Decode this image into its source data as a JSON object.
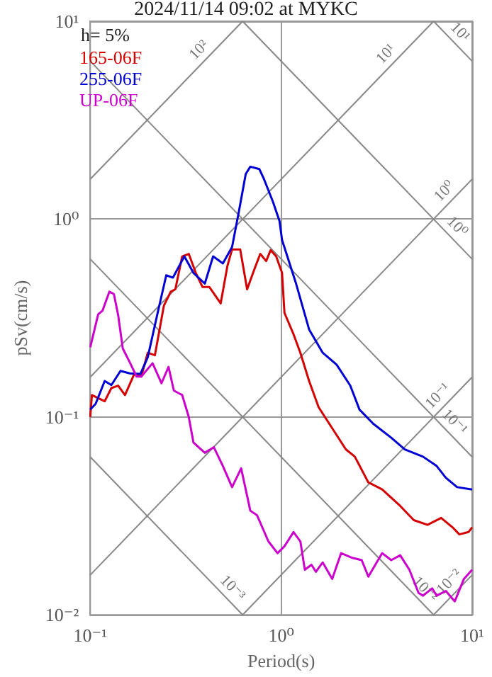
{
  "chart_data": {
    "type": "line",
    "title": "2024/11/14 09:02 at MYKC",
    "xlabel": "Period(s)",
    "ylabel": "pSv(cm/s)",
    "log": "xy",
    "grid": true,
    "legend": "top left",
    "marker": "none",
    "line_style": "solid",
    "xlim": [
      0.1,
      10
    ],
    "ylim": [
      0.01,
      10
    ],
    "xticks": [
      {
        "value": 0.1,
        "label": "10⁻¹"
      },
      {
        "value": 1,
        "label": "10⁰"
      },
      {
        "value": 10,
        "label": "10¹"
      }
    ],
    "yticks": [
      {
        "value": 0.01,
        "label": "10⁻²"
      },
      {
        "value": 0.1,
        "label": "10⁻¹"
      },
      {
        "value": 1,
        "label": "10⁰"
      },
      {
        "value": 10,
        "label": "10¹"
      }
    ],
    "annotations": [
      "h= 5%",
      {
        "text": "10²",
        "x": 0.44,
        "y": 7.0
      },
      {
        "text": "10¹",
        "x": 4.2,
        "y": 6.68
      },
      {
        "text": "10⁰",
        "x": 8.5,
        "y": 1.353
      },
      {
        "text": "10⁻¹",
        "x": 7.85,
        "y": 0.125
      },
      {
        "text": "10⁻²",
        "x": 9,
        "y": 0.01432
      },
      {
        "text": "10¹",
        "x": 8.4,
        "y": 7.48
      },
      {
        "text": "10⁰",
        "x": 8.1,
        "y": 0.776
      },
      {
        "text": "10⁻¹",
        "x": 7.85,
        "y": 0.08
      },
      {
        "text": "10⁻²",
        "x": 5.5,
        "y": 0.01142
      },
      {
        "text": "10⁻³",
        "x": 0.54,
        "y": 0.0116
      }
    ],
    "series": [
      {
        "color": "#888888",
        "x": [
          0.1,
          0.628
        ],
        "values": [
          1.592,
          10
        ]
      },
      {
        "color": "#888888",
        "x": [
          0.1,
          6.283
        ],
        "values": [
          0.159,
          10
        ]
      },
      {
        "color": "#888888",
        "x": [
          0.1,
          10
        ],
        "values": [
          0.0159,
          1.592
        ]
      },
      {
        "color": "#888888",
        "x": [
          0.628,
          10
        ],
        "values": [
          0.01,
          0.159
        ]
      },
      {
        "color": "#888888",
        "x": [
          6.283,
          10
        ],
        "values": [
          0.01,
          0.0159
        ]
      },
      {
        "color": "#888888",
        "x": [
          6.283,
          10
        ],
        "values": [
          10,
          6.283
        ]
      },
      {
        "color": "#888888",
        "x": [
          0.628,
          10
        ],
        "values": [
          10,
          0.628
        ]
      },
      {
        "color": "#888888",
        "x": [
          0.1,
          10
        ],
        "values": [
          6.283,
          0.0628
        ]
      },
      {
        "color": "#888888",
        "x": [
          0.1,
          6.283
        ],
        "values": [
          0.628,
          0.01
        ]
      },
      {
        "color": "#888888",
        "x": [
          0.1,
          0.628
        ],
        "values": [
          0.0628,
          0.01
        ]
      },
      {
        "name": "165-06F",
        "color": "#d40000",
        "x": [
          0.1,
          0.102,
          0.119,
          0.129,
          0.14,
          0.152,
          0.17,
          0.185,
          0.2,
          0.218,
          0.243,
          0.264,
          0.279,
          0.303,
          0.328,
          0.357,
          0.387,
          0.42,
          0.482,
          0.523,
          0.553,
          0.61,
          0.663,
          0.727,
          0.777,
          0.834,
          0.881,
          0.941,
          1.01,
          1.04,
          1.16,
          1.26,
          1.4,
          1.57,
          1.85,
          2.18,
          2.43,
          2.86,
          3.38,
          4.2,
          4.95,
          5.84,
          6.88,
          7.89,
          8.57,
          9.57,
          10
        ],
        "values": [
          0.1,
          0.129,
          0.12,
          0.14,
          0.144,
          0.129,
          0.165,
          0.16,
          0.211,
          0.205,
          0.365,
          0.43,
          0.442,
          0.648,
          0.667,
          0.535,
          0.454,
          0.454,
          0.375,
          0.581,
          0.703,
          0.703,
          0.442,
          0.565,
          0.667,
          0.614,
          0.697,
          0.648,
          0.535,
          0.336,
          0.262,
          0.211,
          0.152,
          0.112,
          0.0877,
          0.0686,
          0.063,
          0.0467,
          0.043,
          0.0355,
          0.0301,
          0.0285,
          0.0309,
          0.0277,
          0.0255,
          0.0262,
          0.0277
        ]
      },
      {
        "name": "255-06F",
        "color": "#0000d4",
        "x": [
          0.1,
          0.1067,
          0.119,
          0.129,
          0.144,
          0.161,
          0.183,
          0.2,
          0.224,
          0.25,
          0.271,
          0.311,
          0.347,
          0.398,
          0.44,
          0.495,
          0.553,
          0.6,
          0.652,
          0.689,
          0.768,
          0.811,
          0.906,
          0.98,
          1.01,
          1.19,
          1.4,
          1.65,
          1.95,
          2.3,
          2.57,
          3.03,
          3.77,
          4.44,
          5.53,
          6.52,
          7.28,
          8.34,
          10
        ],
        "values": [
          0.109,
          0.1165,
          0.152,
          0.145,
          0.171,
          0.166,
          0.165,
          0.2,
          0.327,
          0.52,
          0.506,
          0.648,
          0.535,
          0.472,
          0.648,
          0.597,
          0.723,
          1.09,
          1.69,
          1.84,
          1.79,
          1.6,
          1.22,
          0.977,
          0.785,
          0.48,
          0.277,
          0.211,
          0.184,
          0.144,
          0.109,
          0.0925,
          0.0785,
          0.0686,
          0.063,
          0.0565,
          0.0493,
          0.0442,
          0.043
        ]
      },
      {
        "name": "UP-06F",
        "color": "#cc00cc",
        "x": [
          0.1,
          0.11,
          0.116,
          0.126,
          0.133,
          0.14,
          0.148,
          0.161,
          0.175,
          0.185,
          0.212,
          0.236,
          0.257,
          0.274,
          0.303,
          0.328,
          0.347,
          0.398,
          0.444,
          0.495,
          0.553,
          0.617,
          0.689,
          0.748,
          0.857,
          0.957,
          1.04,
          1.16,
          1.26,
          1.33,
          1.44,
          1.52,
          1.65,
          1.85,
          2.06,
          2.36,
          2.64,
          2.86,
          3.38,
          3.77,
          4.2,
          4.69,
          5.24,
          5.53,
          6.17,
          6.52,
          7.28,
          8.11,
          9.06,
          10
        ],
        "values": [
          0.225,
          0.33,
          0.345,
          0.43,
          0.418,
          0.327,
          0.222,
          0.189,
          0.16,
          0.16,
          0.187,
          0.148,
          0.179,
          0.136,
          0.129,
          0.1,
          0.0743,
          0.0659,
          0.0703,
          0.0565,
          0.0442,
          0.055,
          0.0336,
          0.0318,
          0.0235,
          0.0205,
          0.0222,
          0.0262,
          0.0235,
          0.0169,
          0.0179,
          0.0165,
          0.0184,
          0.0152,
          0.0205,
          0.0194,
          0.0189,
          0.0156,
          0.0205,
          0.0189,
          0.02,
          0.0169,
          0.0129,
          0.0125,
          0.0136,
          0.0125,
          0.0132,
          0.0117,
          0.0152,
          0.0169
        ]
      }
    ]
  }
}
